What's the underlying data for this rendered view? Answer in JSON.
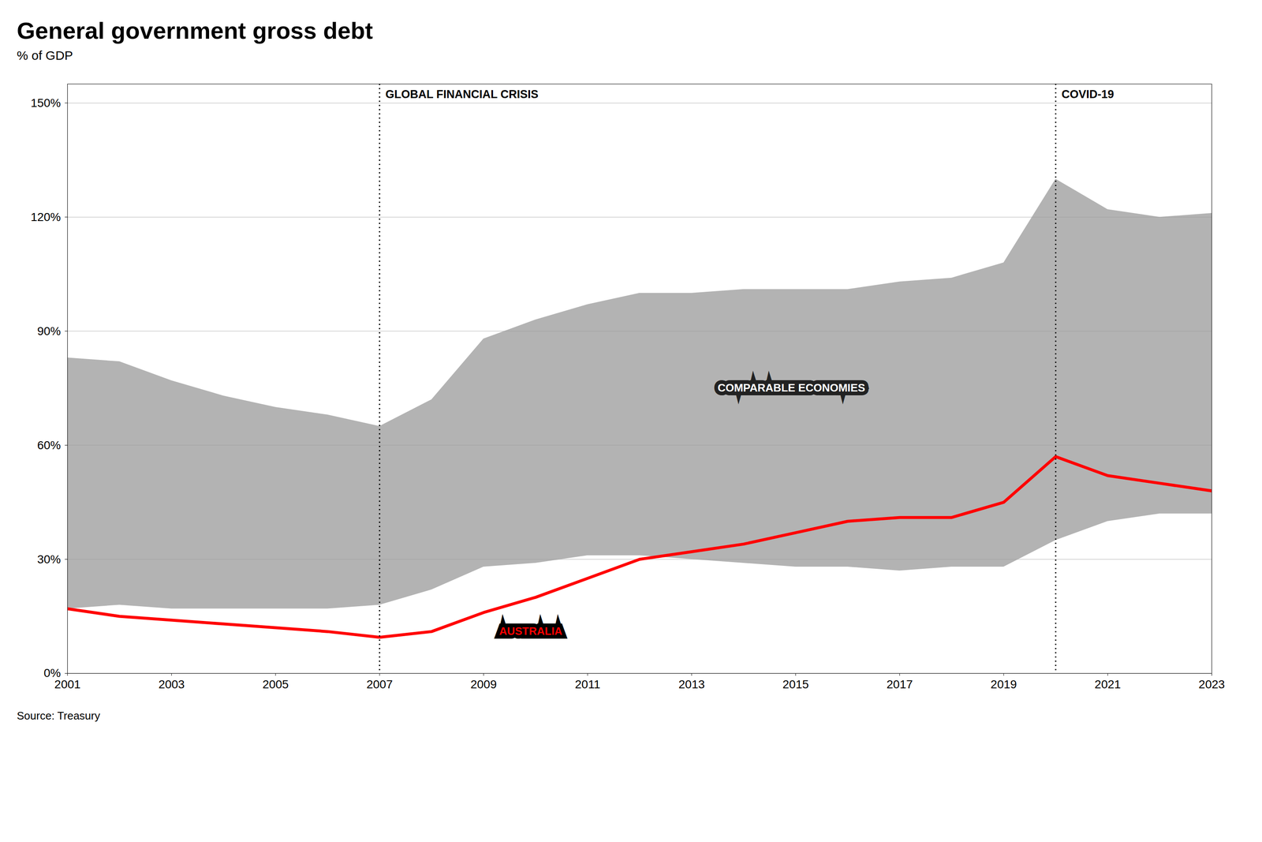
{
  "chart_data": {
    "type": "line",
    "title": "General government gross debt",
    "subtitle": "% of GDP",
    "source": "Source: Treasury",
    "x": [
      2001,
      2002,
      2003,
      2004,
      2005,
      2006,
      2007,
      2008,
      2009,
      2010,
      2011,
      2012,
      2013,
      2014,
      2015,
      2016,
      2017,
      2018,
      2019,
      2020,
      2021,
      2022,
      2023
    ],
    "series": [
      {
        "name": "AUSTRALIA",
        "color": "#ff0000",
        "values": [
          17,
          15,
          14,
          13,
          12,
          11,
          9.5,
          11,
          16,
          20,
          25,
          30,
          32,
          34,
          37,
          40,
          41,
          41,
          45,
          57,
          52,
          50,
          48
        ],
        "label_x": 2009.3,
        "label_y": 11
      }
    ],
    "band": {
      "name": "COMPARABLE ECONOMIES",
      "color": "#999999",
      "upper": [
        83,
        82,
        77,
        73,
        70,
        68,
        65,
        72,
        88,
        93,
        97,
        100,
        100,
        101,
        101,
        101,
        103,
        104,
        108,
        130,
        122,
        120,
        121
      ],
      "lower": [
        17,
        18,
        17,
        17,
        17,
        17,
        18,
        22,
        28,
        29,
        31,
        31,
        30,
        29,
        28,
        28,
        27,
        28,
        28,
        35,
        40,
        42,
        42
      ],
      "label_x": 2013.5,
      "label_y": 75
    },
    "vlines": [
      {
        "x": 2007,
        "label": "GLOBAL FINANCIAL CRISIS"
      },
      {
        "x": 2020,
        "label": "COVID-19"
      }
    ],
    "xlim": [
      2001,
      2023
    ],
    "xticks": [
      2001,
      2003,
      2005,
      2007,
      2009,
      2011,
      2013,
      2015,
      2017,
      2019,
      2021,
      2023
    ],
    "ylim": [
      0,
      155
    ],
    "yticks": [
      {
        "value": 0,
        "label": "0%"
      },
      {
        "value": 30,
        "label": "30%"
      },
      {
        "value": 60,
        "label": "60%"
      },
      {
        "value": 90,
        "label": "90%"
      },
      {
        "value": 120,
        "label": "120%"
      },
      {
        "value": 150,
        "label": "150%"
      }
    ],
    "grid": true
  }
}
